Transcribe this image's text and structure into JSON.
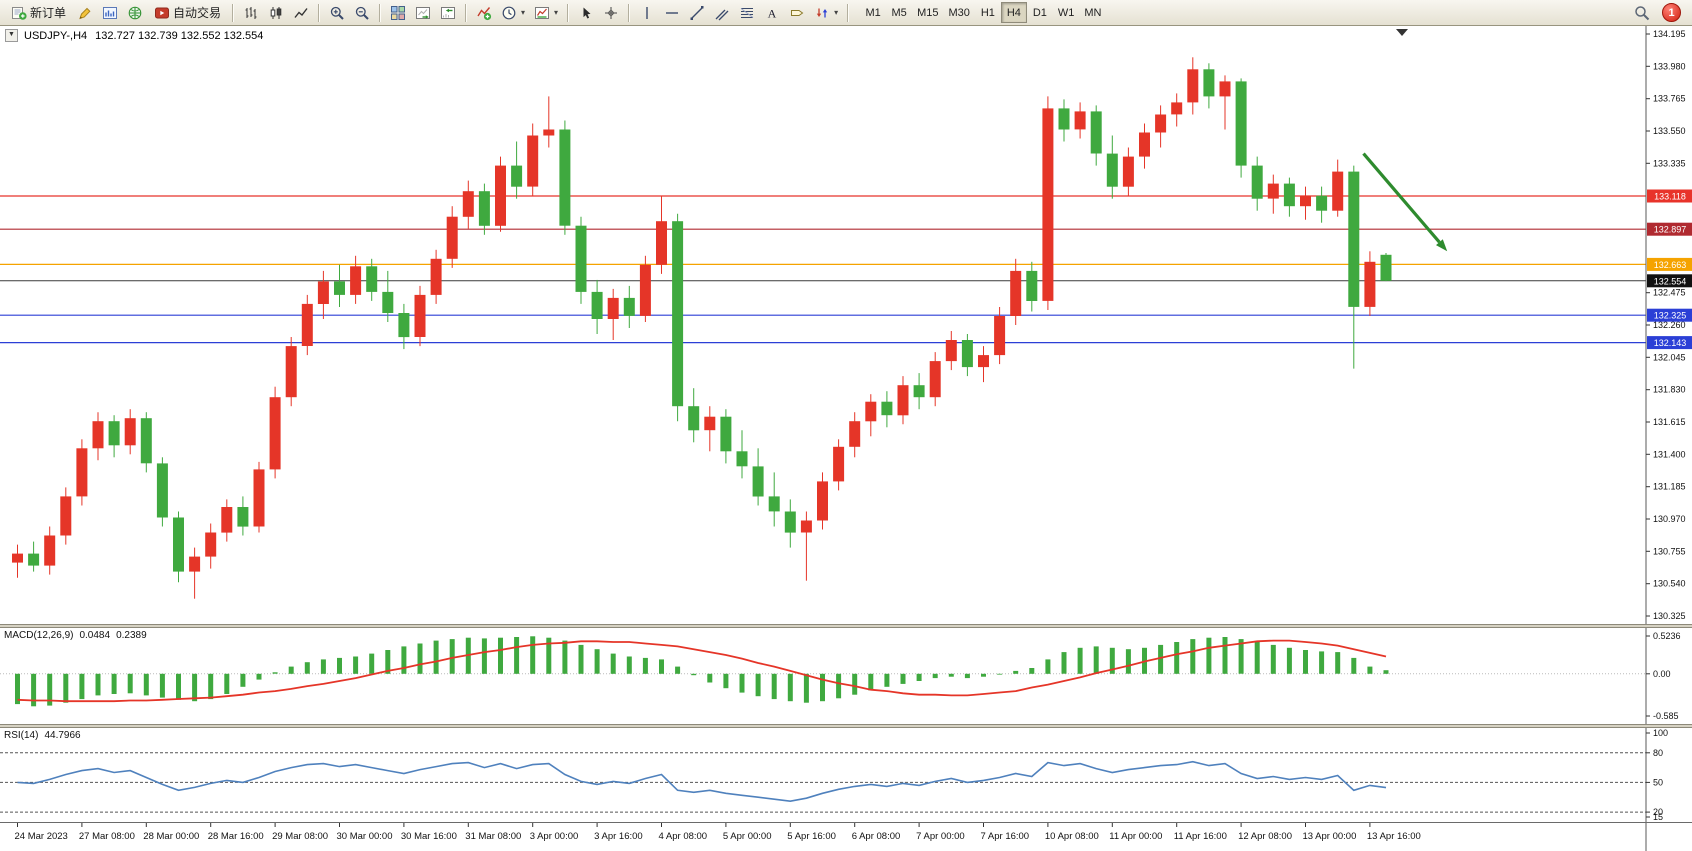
{
  "toolbar": {
    "new_order_label": "新订单",
    "autotrading_label": "自动交易",
    "timeframes": [
      "M1",
      "M5",
      "M15",
      "M30",
      "H1",
      "H4",
      "D1",
      "W1",
      "MN"
    ],
    "active_timeframe": "H4",
    "notification_count": "1"
  },
  "icons": {
    "collapse": "▼",
    "caret": "▾",
    "text_tool": "A"
  },
  "chart": {
    "title": "USDJPY-,H4",
    "ohlc_text": "132.727 132.739 132.552 132.554"
  },
  "colors": {
    "bull": "#e53528",
    "bear": "#3fa93f",
    "macd_hist": "#3fa93f",
    "macd_signal": "#e53528",
    "rsi_line": "#4f81bd",
    "arrow": "#2e8b2e",
    "axis_text": "#111111"
  },
  "chart_data": {
    "type": "candlestick",
    "symbol": "USDJPY-",
    "timeframe": "H4",
    "current_candle": {
      "open": 132.727,
      "high": 132.739,
      "low": 132.552,
      "close": 132.554
    },
    "price_axis": {
      "min": 130.325,
      "max": 134.195,
      "ticks": [
        134.195,
        133.98,
        133.765,
        133.55,
        133.335,
        132.475,
        132.26,
        132.045,
        131.83,
        131.615,
        131.4,
        131.185,
        130.97,
        130.755,
        130.54,
        130.325
      ]
    },
    "hlines": [
      {
        "price": 133.118,
        "label": "133.118",
        "color": "#e8332a"
      },
      {
        "price": 132.897,
        "label": "132.897",
        "color": "#b02a30"
      },
      {
        "price": 132.663,
        "label": "132.663",
        "color": "#f5a300"
      },
      {
        "price": 132.325,
        "label": "132.325",
        "color": "#2b3fd6"
      },
      {
        "price": 132.143,
        "label": "132.143",
        "color": "#2b3fd6"
      }
    ],
    "current_price": {
      "price": 132.554,
      "label": "132.554"
    },
    "annotation_arrow": {
      "from": {
        "i": 83.6,
        "price": 133.4
      },
      "to": {
        "i": 88.8,
        "price": 132.75
      },
      "color": "#2e8b2e"
    },
    "time_labels": [
      {
        "i": 0,
        "t": "24 Mar 2023"
      },
      {
        "i": 4,
        "t": "27 Mar 08:00"
      },
      {
        "i": 8,
        "t": "28 Mar 00:00"
      },
      {
        "i": 12,
        "t": "28 Mar 16:00"
      },
      {
        "i": 16,
        "t": "29 Mar 08:00"
      },
      {
        "i": 20,
        "t": "30 Mar 00:00"
      },
      {
        "i": 24,
        "t": "30 Mar 16:00"
      },
      {
        "i": 28,
        "t": "31 Mar 08:00"
      },
      {
        "i": 32,
        "t": "3 Apr 00:00"
      },
      {
        "i": 36,
        "t": "3 Apr 16:00"
      },
      {
        "i": 40,
        "t": "4 Apr 08:00"
      },
      {
        "i": 44,
        "t": "5 Apr 00:00"
      },
      {
        "i": 48,
        "t": "5 Apr 16:00"
      },
      {
        "i": 52,
        "t": "6 Apr 08:00"
      },
      {
        "i": 56,
        "t": "7 Apr 00:00"
      },
      {
        "i": 60,
        "t": "7 Apr 16:00"
      },
      {
        "i": 64,
        "t": "10 Apr 08:00"
      },
      {
        "i": 68,
        "t": "11 Apr 00:00"
      },
      {
        "i": 72,
        "t": "11 Apr 16:00"
      },
      {
        "i": 76,
        "t": "12 Apr 08:00"
      },
      {
        "i": 80,
        "t": "13 Apr 00:00"
      },
      {
        "i": 84,
        "t": "13 Apr 16:00"
      }
    ],
    "candles": [
      [
        130.68,
        130.8,
        130.58,
        130.74
      ],
      [
        130.74,
        130.82,
        130.62,
        130.66
      ],
      [
        130.66,
        130.92,
        130.6,
        130.86
      ],
      [
        130.86,
        131.18,
        130.8,
        131.12
      ],
      [
        131.12,
        131.5,
        131.06,
        131.44
      ],
      [
        131.44,
        131.68,
        131.36,
        131.62
      ],
      [
        131.62,
        131.66,
        131.38,
        131.46
      ],
      [
        131.46,
        131.7,
        131.4,
        131.64
      ],
      [
        131.64,
        131.68,
        131.28,
        131.34
      ],
      [
        131.34,
        131.38,
        130.92,
        130.98
      ],
      [
        130.98,
        131.02,
        130.55,
        130.62
      ],
      [
        130.62,
        130.78,
        130.44,
        130.72
      ],
      [
        130.72,
        130.94,
        130.64,
        130.88
      ],
      [
        130.88,
        131.1,
        130.82,
        131.05
      ],
      [
        131.05,
        131.12,
        130.86,
        130.92
      ],
      [
        130.92,
        131.35,
        130.88,
        131.3
      ],
      [
        131.3,
        131.85,
        131.24,
        131.78
      ],
      [
        131.78,
        132.18,
        131.72,
        132.12
      ],
      [
        132.12,
        132.46,
        132.06,
        132.4
      ],
      [
        132.4,
        132.62,
        132.3,
        132.55
      ],
      [
        132.55,
        132.66,
        132.38,
        132.46
      ],
      [
        132.46,
        132.72,
        132.4,
        132.65
      ],
      [
        132.65,
        132.7,
        132.42,
        132.48
      ],
      [
        132.48,
        132.62,
        132.28,
        132.34
      ],
      [
        132.34,
        132.4,
        132.1,
        132.18
      ],
      [
        132.18,
        132.52,
        132.12,
        132.46
      ],
      [
        132.46,
        132.76,
        132.4,
        132.7
      ],
      [
        132.7,
        133.05,
        132.64,
        132.98
      ],
      [
        132.98,
        133.22,
        132.9,
        133.15
      ],
      [
        133.15,
        133.2,
        132.86,
        132.92
      ],
      [
        132.92,
        133.38,
        132.88,
        133.32
      ],
      [
        133.32,
        133.48,
        133.1,
        133.18
      ],
      [
        133.18,
        133.6,
        133.12,
        133.52
      ],
      [
        133.52,
        133.78,
        133.44,
        133.56
      ],
      [
        133.56,
        133.62,
        132.86,
        132.92
      ],
      [
        132.92,
        132.98,
        132.4,
        132.48
      ],
      [
        132.48,
        132.56,
        132.2,
        132.3
      ],
      [
        132.3,
        132.5,
        132.16,
        132.44
      ],
      [
        132.44,
        132.52,
        132.24,
        132.32
      ],
      [
        132.32,
        132.72,
        132.28,
        132.66
      ],
      [
        132.66,
        133.12,
        132.6,
        132.95
      ],
      [
        132.95,
        133.0,
        131.62,
        131.72
      ],
      [
        131.72,
        131.84,
        131.48,
        131.56
      ],
      [
        131.56,
        131.72,
        131.42,
        131.65
      ],
      [
        131.65,
        131.7,
        131.34,
        131.42
      ],
      [
        131.42,
        131.56,
        131.24,
        131.32
      ],
      [
        131.32,
        131.44,
        131.06,
        131.12
      ],
      [
        131.12,
        131.28,
        130.92,
        131.02
      ],
      [
        131.02,
        131.1,
        130.78,
        130.88
      ],
      [
        130.88,
        131.02,
        130.56,
        130.96
      ],
      [
        130.96,
        131.28,
        130.9,
        131.22
      ],
      [
        131.22,
        131.5,
        131.16,
        131.45
      ],
      [
        131.45,
        131.68,
        131.38,
        131.62
      ],
      [
        131.62,
        131.8,
        131.52,
        131.75
      ],
      [
        131.75,
        131.82,
        131.58,
        131.66
      ],
      [
        131.66,
        131.92,
        131.6,
        131.86
      ],
      [
        131.86,
        131.94,
        131.7,
        131.78
      ],
      [
        131.78,
        132.08,
        131.72,
        132.02
      ],
      [
        132.02,
        132.22,
        131.96,
        132.16
      ],
      [
        132.16,
        132.2,
        131.92,
        131.98
      ],
      [
        131.98,
        132.12,
        131.88,
        132.06
      ],
      [
        132.06,
        132.38,
        132.0,
        132.32
      ],
      [
        132.32,
        132.7,
        132.26,
        132.62
      ],
      [
        132.62,
        132.68,
        132.35,
        132.42
      ],
      [
        132.42,
        133.78,
        132.36,
        133.7
      ],
      [
        133.7,
        133.76,
        133.48,
        133.56
      ],
      [
        133.56,
        133.74,
        133.5,
        133.68
      ],
      [
        133.68,
        133.72,
        133.32,
        133.4
      ],
      [
        133.4,
        133.52,
        133.1,
        133.18
      ],
      [
        133.18,
        133.44,
        133.12,
        133.38
      ],
      [
        133.38,
        133.6,
        133.3,
        133.54
      ],
      [
        133.54,
        133.72,
        133.44,
        133.66
      ],
      [
        133.66,
        133.8,
        133.58,
        133.74
      ],
      [
        133.74,
        134.04,
        133.66,
        133.96
      ],
      [
        133.96,
        134.0,
        133.7,
        133.78
      ],
      [
        133.78,
        133.92,
        133.56,
        133.88
      ],
      [
        133.88,
        133.9,
        133.24,
        133.32
      ],
      [
        133.32,
        133.38,
        133.02,
        133.1
      ],
      [
        133.1,
        133.26,
        133.0,
        133.2
      ],
      [
        133.2,
        133.24,
        132.98,
        133.05
      ],
      [
        133.05,
        133.18,
        132.96,
        133.12
      ],
      [
        133.12,
        133.18,
        132.94,
        133.02
      ],
      [
        133.02,
        133.36,
        132.98,
        133.28
      ],
      [
        133.28,
        133.32,
        131.97,
        132.38
      ],
      [
        132.38,
        132.75,
        132.32,
        132.68
      ],
      [
        132.727,
        132.739,
        132.552,
        132.554
      ]
    ],
    "indicators": {
      "macd": {
        "name": "MACD(12,26,9)",
        "main_value": "0.0484",
        "signal_value": "0.2389",
        "scale_max": 0.5236,
        "scale_min": -0.585,
        "scale": [
          {
            "v": 0.5236,
            "label": "0.5236"
          },
          {
            "v": 0,
            "label": "0.00"
          },
          {
            "v": -0.585,
            "label": "-0.585"
          }
        ],
        "histogram": [
          -0.42,
          -0.45,
          -0.44,
          -0.4,
          -0.35,
          -0.3,
          -0.28,
          -0.27,
          -0.3,
          -0.33,
          -0.36,
          -0.38,
          -0.35,
          -0.28,
          -0.18,
          -0.08,
          0.02,
          0.1,
          0.16,
          0.2,
          0.22,
          0.24,
          0.28,
          0.33,
          0.38,
          0.42,
          0.46,
          0.48,
          0.5,
          0.49,
          0.5,
          0.51,
          0.52,
          0.5,
          0.46,
          0.4,
          0.34,
          0.28,
          0.24,
          0.22,
          0.2,
          0.1,
          -0.02,
          -0.12,
          -0.2,
          -0.26,
          -0.31,
          -0.35,
          -0.38,
          -0.4,
          -0.38,
          -0.34,
          -0.29,
          -0.23,
          -0.18,
          -0.14,
          -0.1,
          -0.06,
          -0.04,
          -0.06,
          -0.04,
          0.0,
          0.04,
          0.08,
          0.2,
          0.3,
          0.36,
          0.38,
          0.36,
          0.34,
          0.36,
          0.4,
          0.44,
          0.48,
          0.5,
          0.51,
          0.48,
          0.44,
          0.4,
          0.36,
          0.33,
          0.31,
          0.3,
          0.22,
          0.1,
          0.05
        ],
        "signal": [
          -0.36,
          -0.37,
          -0.37,
          -0.38,
          -0.38,
          -0.38,
          -0.38,
          -0.37,
          -0.37,
          -0.36,
          -0.35,
          -0.34,
          -0.33,
          -0.31,
          -0.29,
          -0.26,
          -0.24,
          -0.21,
          -0.17,
          -0.14,
          -0.1,
          -0.06,
          -0.01,
          0.04,
          0.08,
          0.13,
          0.17,
          0.22,
          0.26,
          0.3,
          0.33,
          0.37,
          0.4,
          0.42,
          0.43,
          0.45,
          0.45,
          0.44,
          0.44,
          0.42,
          0.4,
          0.38,
          0.34,
          0.3,
          0.26,
          0.21,
          0.15,
          0.1,
          0.04,
          -0.02,
          -0.08,
          -0.13,
          -0.17,
          -0.22,
          -0.24,
          -0.27,
          -0.29,
          -0.29,
          -0.3,
          -0.3,
          -0.28,
          -0.26,
          -0.24,
          -0.19,
          -0.15,
          -0.1,
          -0.05,
          0.01,
          0.06,
          0.11,
          0.17,
          0.22,
          0.27,
          0.31,
          0.36,
          0.39,
          0.42,
          0.45,
          0.46,
          0.46,
          0.44,
          0.42,
          0.39,
          0.34,
          0.29,
          0.24
        ]
      },
      "rsi": {
        "name": "RSI(14)",
        "value_text": "44.7966",
        "scale_max": 100,
        "scale_min": 15,
        "levels": [
          80,
          50,
          20
        ],
        "scale": [
          {
            "v": 100,
            "label": "100"
          },
          {
            "v": 80,
            "label": "80"
          },
          {
            "v": 50,
            "label": "50"
          },
          {
            "v": 20,
            "label": "20"
          },
          {
            "v": 15,
            "label": "15"
          }
        ],
        "values": [
          50,
          49,
          53,
          58,
          62,
          64,
          60,
          62,
          55,
          48,
          42,
          45,
          49,
          52,
          50,
          55,
          61,
          65,
          68,
          69,
          66,
          68,
          65,
          62,
          59,
          63,
          66,
          69,
          70,
          65,
          69,
          64,
          68,
          69,
          58,
          51,
          48,
          51,
          49,
          54,
          58,
          42,
          40,
          42,
          39,
          37,
          35,
          33,
          31,
          34,
          39,
          43,
          46,
          48,
          46,
          49,
          47,
          51,
          54,
          50,
          52,
          55,
          59,
          56,
          70,
          67,
          69,
          64,
          60,
          63,
          65,
          67,
          68,
          71,
          67,
          69,
          59,
          54,
          56,
          53,
          55,
          53,
          57,
          42,
          47,
          44.8
        ]
      }
    }
  }
}
